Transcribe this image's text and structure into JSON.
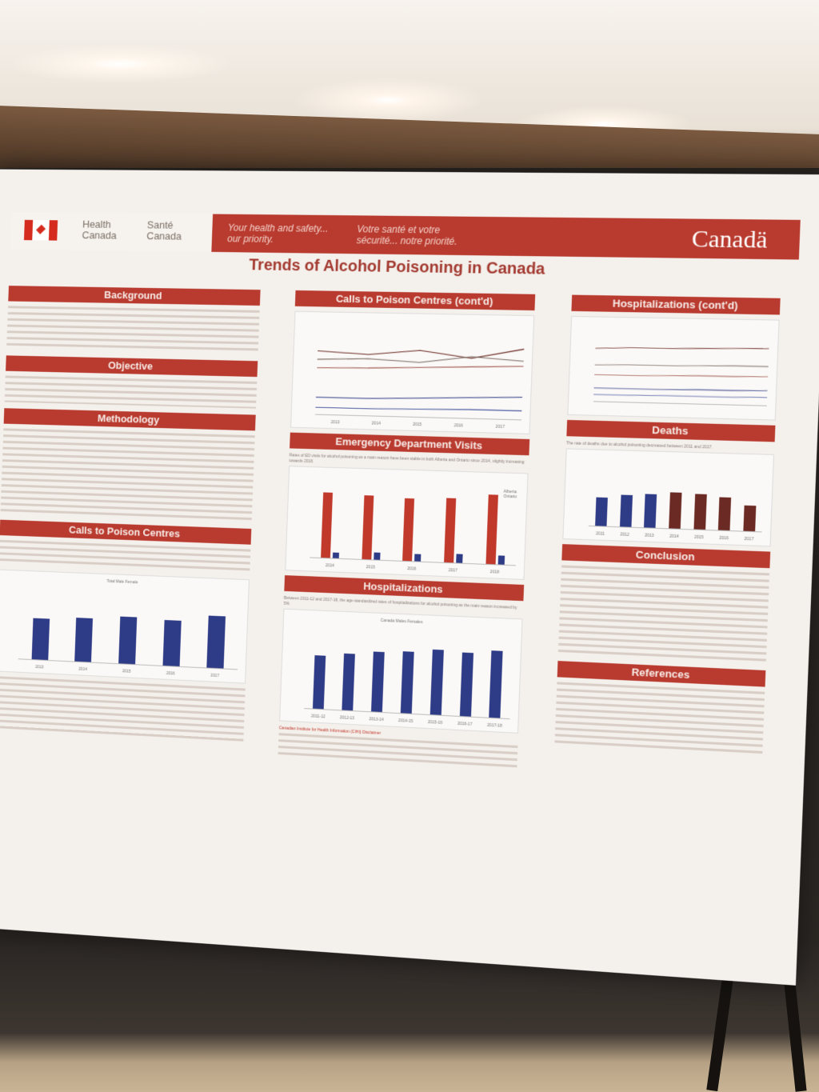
{
  "header": {
    "dept_en": "Health\nCanada",
    "dept_fr": "Santé\nCanada",
    "slogan_en": "Your health and safety... our priority.",
    "slogan_fr": "Votre santé et votre sécurité... notre priorité.",
    "wordmark": "Canadä"
  },
  "title": "Trends of Alcohol Poisoning in Canada",
  "sections": {
    "background": "Background",
    "objective": "Objective",
    "methodology": "Methodology",
    "calls": "Calls to Poison Centres",
    "calls_cont": "Calls to Poison Centres (cont'd)",
    "ed": "Emergency Department Visits",
    "hosp": "Hospitalizations",
    "hosp_cont": "Hospitalizations (cont'd)",
    "deaths": "Deaths",
    "conclusion": "Conclusion",
    "references": "References"
  },
  "notes": {
    "ed_cap": "Rates of ED visits for alcohol poisoning as a main reason have been stable in both Alberta and Ontario since 2014, slightly increasing towards 2018.",
    "hosp_cap": "Between 2011-12 and 2017-18, the age-standardized rates of hospitalizations for alcohol poisoning as the main reason increased by 5%.",
    "deaths_cap": "The rate of deaths due to alcohol poisoning decreased between 2011 and 2017.",
    "footer_note": "Canadian Institute for Health Information (CIHI) Disclaimer"
  },
  "chart_labels": {
    "calls_x": [
      "2013",
      "2014",
      "2015",
      "2016",
      "2017"
    ],
    "calls_legend": "Total   Male   Female",
    "ed_x": [
      "2014",
      "2015",
      "2016",
      "2017",
      "2018"
    ],
    "ed_legend_a": "Alberta",
    "ed_legend_b": "Ontario",
    "hosp_x": [
      "2011-12",
      "2012-13",
      "2013-14",
      "2014-15",
      "2015-16",
      "2016-17",
      "2017-18"
    ],
    "hosp_legend": "Canada   Males   Females",
    "deaths_x": [
      "2011",
      "2012",
      "2013",
      "2014",
      "2015",
      "2016",
      "2017"
    ],
    "pc_x": [
      "2013",
      "2014",
      "2015",
      "2016",
      "2017"
    ]
  }
}
